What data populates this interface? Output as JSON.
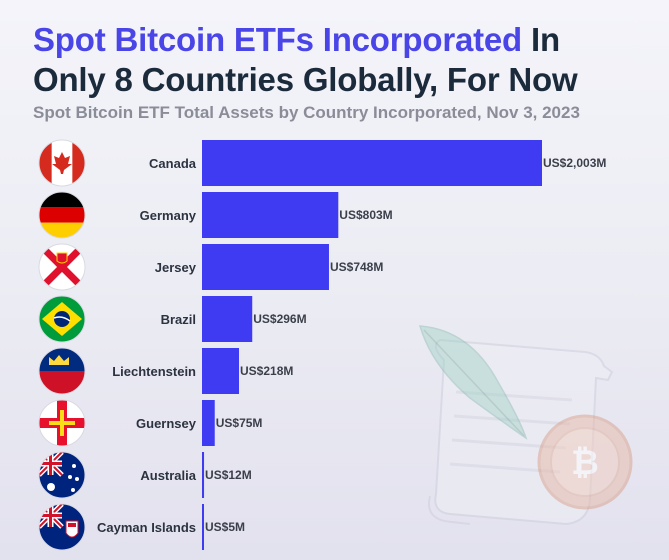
{
  "header": {
    "title_highlight": "Spot Bitcoin ETFs Incorporated",
    "title_rest_line1": " In",
    "title_line2": "Only 8 Countries Globally, For Now",
    "subtitle": "Spot Bitcoin ETF Total Assets by Country Incorporated, Nov 3, 2023"
  },
  "colors": {
    "bar": "#3e3bf2",
    "title_accent": "#4a45e6",
    "title_dark": "#1b2b3c"
  },
  "chart_data": {
    "type": "bar",
    "orientation": "horizontal",
    "title": "Spot Bitcoin ETFs Incorporated In Only 8 Countries Globally, For Now",
    "subtitle": "Spot Bitcoin ETF Total Assets by Country Incorporated, Nov 3, 2023",
    "categories": [
      "Canada",
      "Germany",
      "Jersey",
      "Brazil",
      "Liechtenstein",
      "Guernsey",
      "Australia",
      "Cayman Islands"
    ],
    "values": [
      2003,
      803,
      748,
      296,
      218,
      75,
      12,
      5
    ],
    "value_labels": [
      "US$2,003M",
      "US$803M",
      "US$748M",
      "US$296M",
      "US$218M",
      "US$75M",
      "US$12M",
      "US$5M"
    ],
    "flag_icons": [
      "canada-flag-icon",
      "germany-flag-icon",
      "jersey-flag-icon",
      "brazil-flag-icon",
      "liechtenstein-flag-icon",
      "guernsey-flag-icon",
      "australia-flag-icon",
      "cayman-islands-flag-icon"
    ],
    "xlim": [
      0,
      2003
    ],
    "xlabel": "",
    "ylabel": "",
    "grid": false,
    "legend": "none"
  }
}
